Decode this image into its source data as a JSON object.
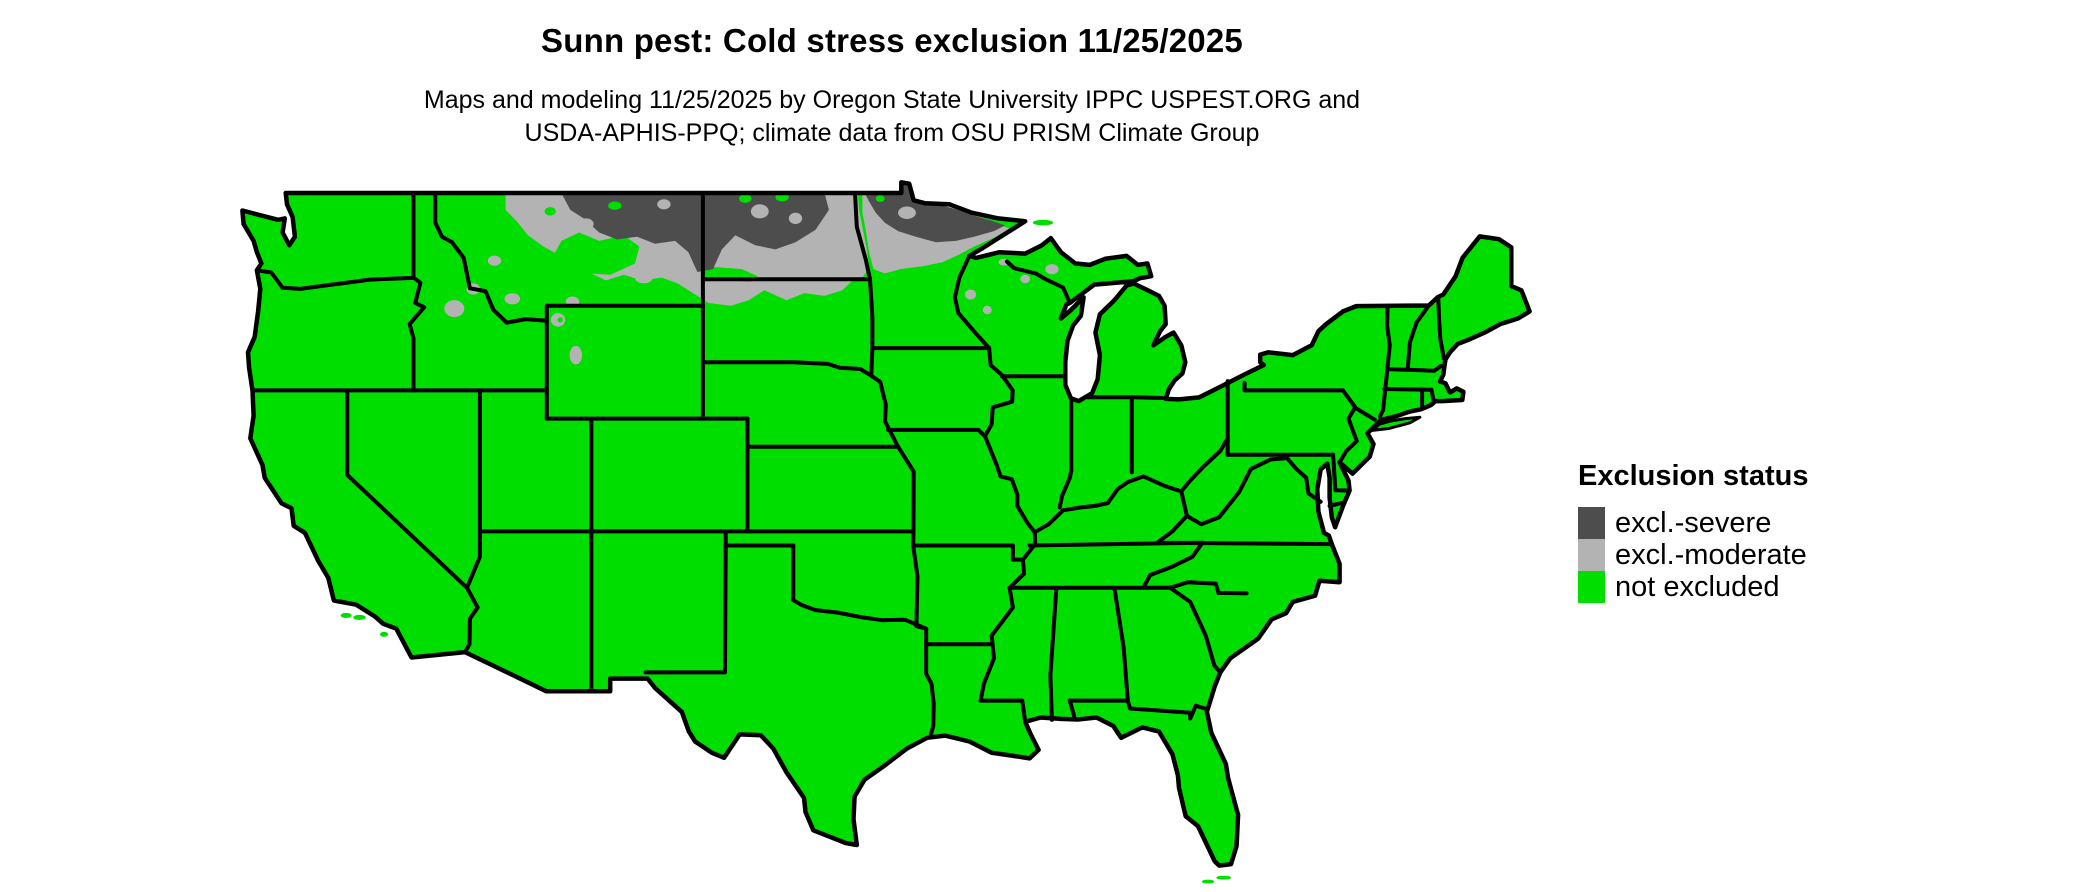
{
  "title": "Sunn pest: Cold stress exclusion 11/25/2025",
  "subtitle": {
    "line1": "Maps and modeling 11/25/2025 by Oregon State University IPPC USPEST.ORG and",
    "line2": "USDA-APHIS-PPQ; climate data from OSU PRISM Climate Group"
  },
  "legend": {
    "title": "Exclusion status",
    "items": [
      {
        "id": "severe",
        "label": "excl.-severe",
        "color": "#4d4d4d"
      },
      {
        "id": "moderate",
        "label": "excl.-moderate",
        "color": "#b3b3b3"
      },
      {
        "id": "not_excluded",
        "label": "not excluded",
        "color": "#00de00"
      }
    ]
  },
  "map": {
    "region": "Continental United States (lower 48 states)",
    "background_color": "#ffffff",
    "state_border_color": "#000000",
    "severe_areas": "northern Montana hi-line, northern and central North Dakota, northern Minnesota (Lake of the Woods to the Arrowhead)",
    "moderate_areas": "fringe surrounding the severe zone: north-central Montana, western and eastern North Dakota, northern edge of South Dakota, northwest to northeast Minnesota, plus small high-elevation Rocky Mountain and upper-Midwest patches",
    "not_excluded_areas": "all remaining areas of the continental United States"
  }
}
